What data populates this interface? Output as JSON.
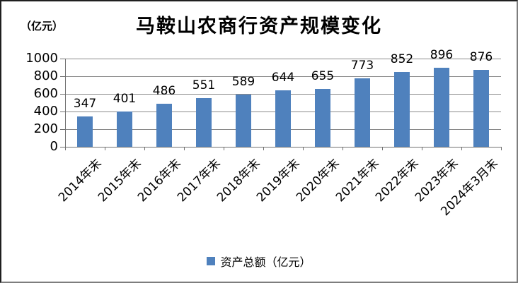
{
  "chart_data": {
    "type": "bar",
    "title": "马鞍山农商行资产规模变化",
    "unit_label": "（亿元）",
    "categories": [
      "2014年末",
      "2015年末",
      "2016年末",
      "2017年末",
      "2018年末",
      "2019年末",
      "2020年末",
      "2021年末",
      "2022年末",
      "2023年末",
      "2024年3月末"
    ],
    "series": [
      {
        "name": "资产总额（亿元）",
        "values": [
          347,
          401,
          486,
          551,
          589,
          644,
          655,
          773,
          852,
          896,
          876
        ]
      }
    ],
    "xlabel": "",
    "ylabel": "（亿元）",
    "ylim": [
      0,
      1000
    ],
    "y_ticks": [
      0,
      200,
      400,
      600,
      800,
      1000
    ],
    "grid": true,
    "legend_position": "bottom",
    "bar_color": "#4F81BD",
    "gridline_color": "#8a8a8a",
    "axis_color": "#707070",
    "text_color": "#000000"
  }
}
